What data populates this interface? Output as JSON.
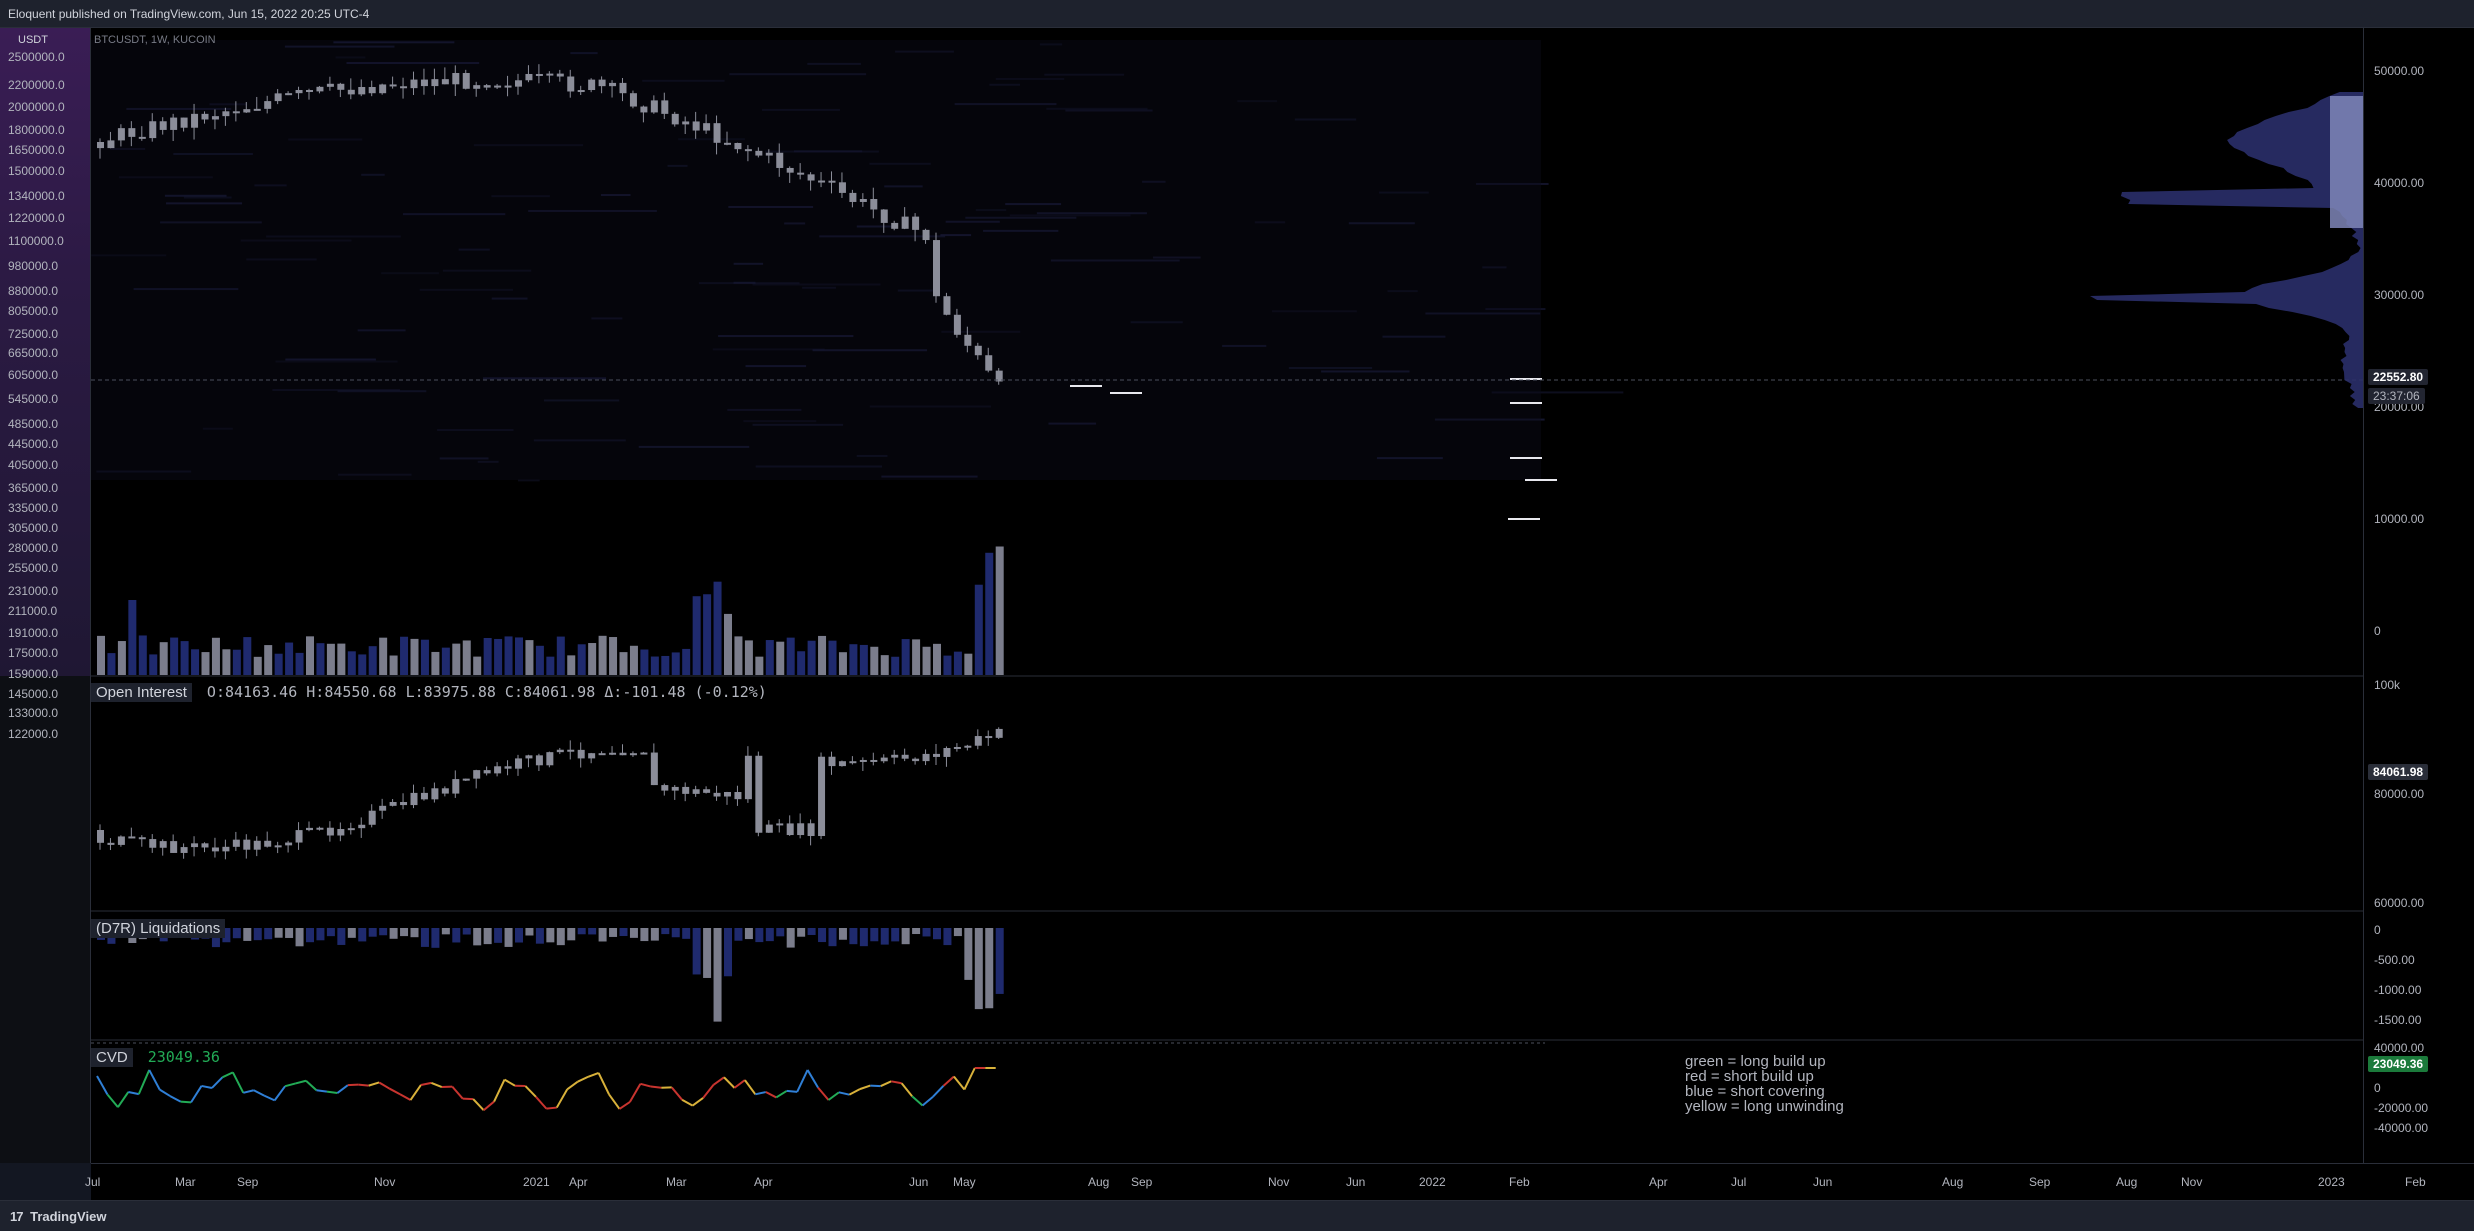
{
  "header": {
    "published": "Eloquent published on TradingView.com, Jun 15, 2022 20:25 UTC-4"
  },
  "footer": {
    "brand": "TradingView",
    "mark": "17"
  },
  "symbol": {
    "line": "BTCUSDT, 1W, KUCOIN"
  },
  "left_axis": {
    "currency": "USDT",
    "labels": [
      "2500000.0",
      "2200000.0",
      "2000000.0",
      "1800000.0",
      "1650000.0",
      "1500000.0",
      "1340000.0",
      "1220000.0",
      "1100000.0",
      "980000.0",
      "880000.0",
      "805000.0",
      "725000.0",
      "665000.0",
      "605000.0",
      "545000.0",
      "485000.0",
      "445000.0",
      "405000.0",
      "365000.0",
      "335000.0",
      "305000.0",
      "280000.0",
      "255000.0",
      "231000.0",
      "211000.0",
      "191000.0",
      "175000.0",
      "159000.0",
      "145000.0",
      "133000.0",
      "122000.0"
    ]
  },
  "right_axis": {
    "price_labels": [
      "50000.00",
      "40000.00",
      "30000.00",
      "20000.00",
      "10000.00",
      "0"
    ],
    "oi_labels": [
      "100k",
      "80000.00",
      "60000.00"
    ],
    "liq_labels": [
      "0",
      "-500.00",
      "-1000.00",
      "-1500.00"
    ],
    "cvd_labels": [
      "40000.00",
      "20000.00",
      "0",
      "-20000.00",
      "-40000.00"
    ],
    "last_price": "22552.80",
    "countdown": "23:37:06",
    "oi_last": "84061.98",
    "cvd_last": "23049.36"
  },
  "time_axis": {
    "labels": [
      "Jul",
      "Mar",
      "Sep",
      "Nov",
      "2021",
      "Apr",
      "Mar",
      "Apr",
      "Jun",
      "May",
      "Aug",
      "Sep",
      "Nov",
      "Jun",
      "2022",
      "Feb",
      "Apr",
      "Jul",
      "Jun",
      "Aug",
      "Sep",
      "Aug",
      "Nov",
      "2023",
      "Feb"
    ]
  },
  "panes": {
    "open_interest": {
      "title": "Open Interest",
      "ohlc": "O:84163.46 H:84550.68 L:83975.88 C:84061.98 Δ:-101.48 (-0.12%)"
    },
    "liquidations": {
      "title": "(D7R) Liquidations"
    },
    "cvd": {
      "title": "CVD",
      "value": "23049.36"
    }
  },
  "cvd_legend": {
    "lines": [
      "green = long build up",
      "red = short build up",
      "blue = short covering",
      "yellow = long unwinding"
    ]
  },
  "colors": {
    "background": "#000000",
    "panel": "#1e222d",
    "candle": "#8b8d99",
    "volume_blue": "#1f2a6e",
    "volume_grey": "#7b7d8c",
    "cvd_green": "#22ab56",
    "cvd_red": "#c8342f",
    "cvd_blue": "#2f7fd6",
    "cvd_yellow": "#d8b13a",
    "profile": "#7f86b8",
    "cvd_pill": "#1b7a3b"
  }
}
